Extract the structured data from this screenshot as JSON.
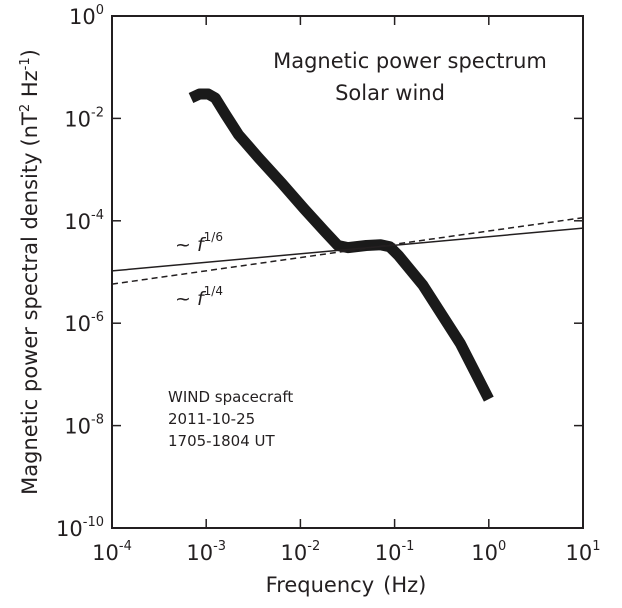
{
  "chart_data": {
    "type": "line",
    "title_lines": [
      "Magnetic power spectrum",
      "Solar wind"
    ],
    "xlabel": {
      "text": "Frequency",
      "unit": "(Hz)"
    },
    "ylabel": {
      "text": "Magnetic power spectral density",
      "unit": "(nT",
      "unit_sup1": "2",
      "unit_mid": " Hz",
      "unit_sup2": "-1",
      "unit_end": ")"
    },
    "x_scale": "log",
    "y_scale": "log",
    "xlim": [
      0.0001,
      10
    ],
    "ylim": [
      1e-10,
      1
    ],
    "grid": false,
    "x_ticks": [
      {
        "value": 0.0001,
        "base": "10",
        "exp": "-4"
      },
      {
        "value": 0.001,
        "base": "10",
        "exp": "-3"
      },
      {
        "value": 0.01,
        "base": "10",
        "exp": "-2"
      },
      {
        "value": 0.1,
        "base": "10",
        "exp": "-1"
      },
      {
        "value": 1,
        "base": "10",
        "exp": "0"
      },
      {
        "value": 10,
        "base": "10",
        "exp": "1"
      }
    ],
    "y_ticks": [
      {
        "value": 1e-10,
        "base": "10",
        "exp": "-10"
      },
      {
        "value": 1e-08,
        "base": "10",
        "exp": "-8"
      },
      {
        "value": 1e-06,
        "base": "10",
        "exp": "-6"
      },
      {
        "value": 0.0001,
        "base": "10",
        "exp": "-4"
      },
      {
        "value": 0.01,
        "base": "10",
        "exp": "-2"
      },
      {
        "value": 1,
        "base": "10",
        "exp": "0"
      }
    ],
    "series": [
      {
        "style": "thick",
        "color": "#1a1a1a",
        "x": [
          0.00069,
          0.00085,
          0.00105,
          0.00125,
          0.0016,
          0.0022,
          0.0036,
          0.0063,
          0.011,
          0.018,
          0.025,
          0.032,
          0.05,
          0.071,
          0.089,
          0.11,
          0.2,
          0.5,
          1.0
        ],
        "y": [
          0.025,
          0.03,
          0.03,
          0.025,
          0.012,
          0.0048,
          0.0017,
          0.00055,
          0.00017,
          6.3e-05,
          3.3e-05,
          3e-05,
          3.3e-05,
          3.4e-05,
          3.1e-05,
          2.1e-05,
          5.5e-06,
          4e-07,
          3.3e-08
        ]
      },
      {
        "style": "solid",
        "color": "#231f20",
        "x": [
          0.0001,
          10
        ],
        "y": [
          1.05e-05,
          7.2e-05
        ]
      },
      {
        "style": "dashed",
        "color": "#231f20",
        "x": [
          0.0001,
          10
        ],
        "y": [
          5.8e-06,
          0.000115
        ]
      }
    ],
    "fit_labels": [
      {
        "prefix": "~ ",
        "var": "f",
        "exp": "1/6"
      },
      {
        "prefix": "~ ",
        "var": "f",
        "exp": "1/4"
      }
    ],
    "info_lines": [
      "WIND spacecraft",
      "2011-10-25",
      "1705-1804 UT"
    ]
  }
}
